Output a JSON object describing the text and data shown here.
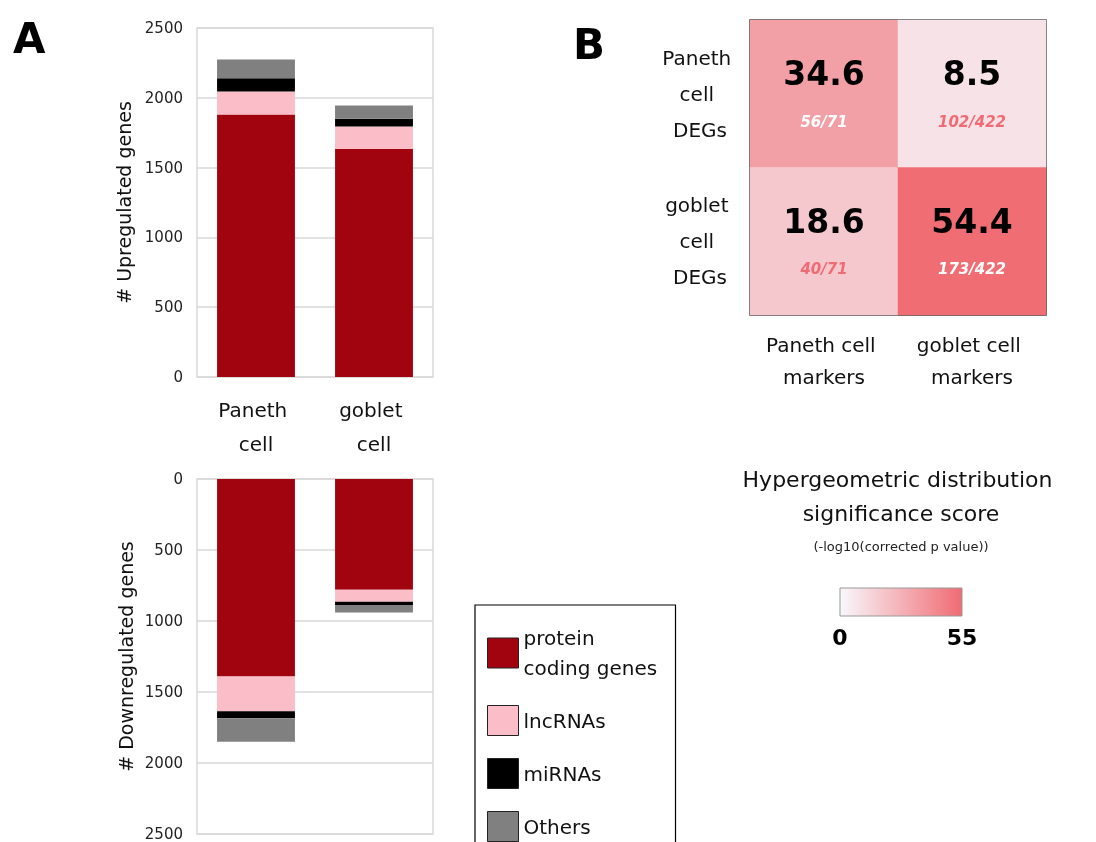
{
  "chart_data": [
    {
      "type": "bar",
      "title": "A",
      "ylabel": "# Upregulated genes",
      "categories": [
        "Paneth cell",
        "goblet cell"
      ],
      "stacked": true,
      "ylim": [
        0,
        2500
      ],
      "yticks": [
        0,
        500,
        1000,
        1500,
        2000,
        2500
      ],
      "grid": "y",
      "series": [
        {
          "color": "#a1040f",
          "values": [
            1880,
            1635
          ]
        },
        {
          "color": "#fbbec8",
          "values": [
            165,
            160
          ]
        },
        {
          "color": "#000000",
          "values": [
            95,
            55
          ]
        },
        {
          "color": "#808080",
          "values": [
            135,
            95
          ]
        }
      ]
    },
    {
      "type": "bar",
      "ylabel": "# Downregulated genes",
      "categories": [
        "Paneth cell",
        "goblet cell"
      ],
      "stacked": true,
      "ylim": [
        2500,
        0
      ],
      "yticks": [
        0,
        500,
        1000,
        1500,
        2000,
        2500
      ],
      "grid": "y",
      "tick_labels": "y",
      "legend": "right",
      "series": [
        {
          "name": "protein coding genes",
          "color": "#a1040f",
          "values": [
            1390,
            780
          ]
        },
        {
          "name": "lncRNAs",
          "color": "#fbbec8",
          "values": [
            245,
            85
          ]
        },
        {
          "name": "miRNAs",
          "color": "#000000",
          "values": [
            50,
            25
          ]
        },
        {
          "name": "Others",
          "color": "#808080",
          "values": [
            165,
            50
          ]
        }
      ]
    },
    {
      "type": "heatmap",
      "title": "B",
      "categories": [
        "Paneth cell markers",
        "goblet cell markers"
      ],
      "y_categories": [
        "Paneth cell DEGs",
        "goblet cell DEGs"
      ],
      "cells": [
        [
          34.6,
          8.5
        ],
        [
          18.6,
          54.4
        ]
      ],
      "cell_labels": [
        [
          "34.6\n56/71",
          "8.5\n102/422"
        ],
        [
          "18.6\n40/71",
          "54.4\n173/422"
        ]
      ],
      "clim": [
        0,
        55
      ],
      "cticks": [
        0,
        55
      ],
      "clabel": "Hypergeometric distribution significance score",
      "annotations": [
        "(-log10(corrected p value))"
      ]
    }
  ]
}
